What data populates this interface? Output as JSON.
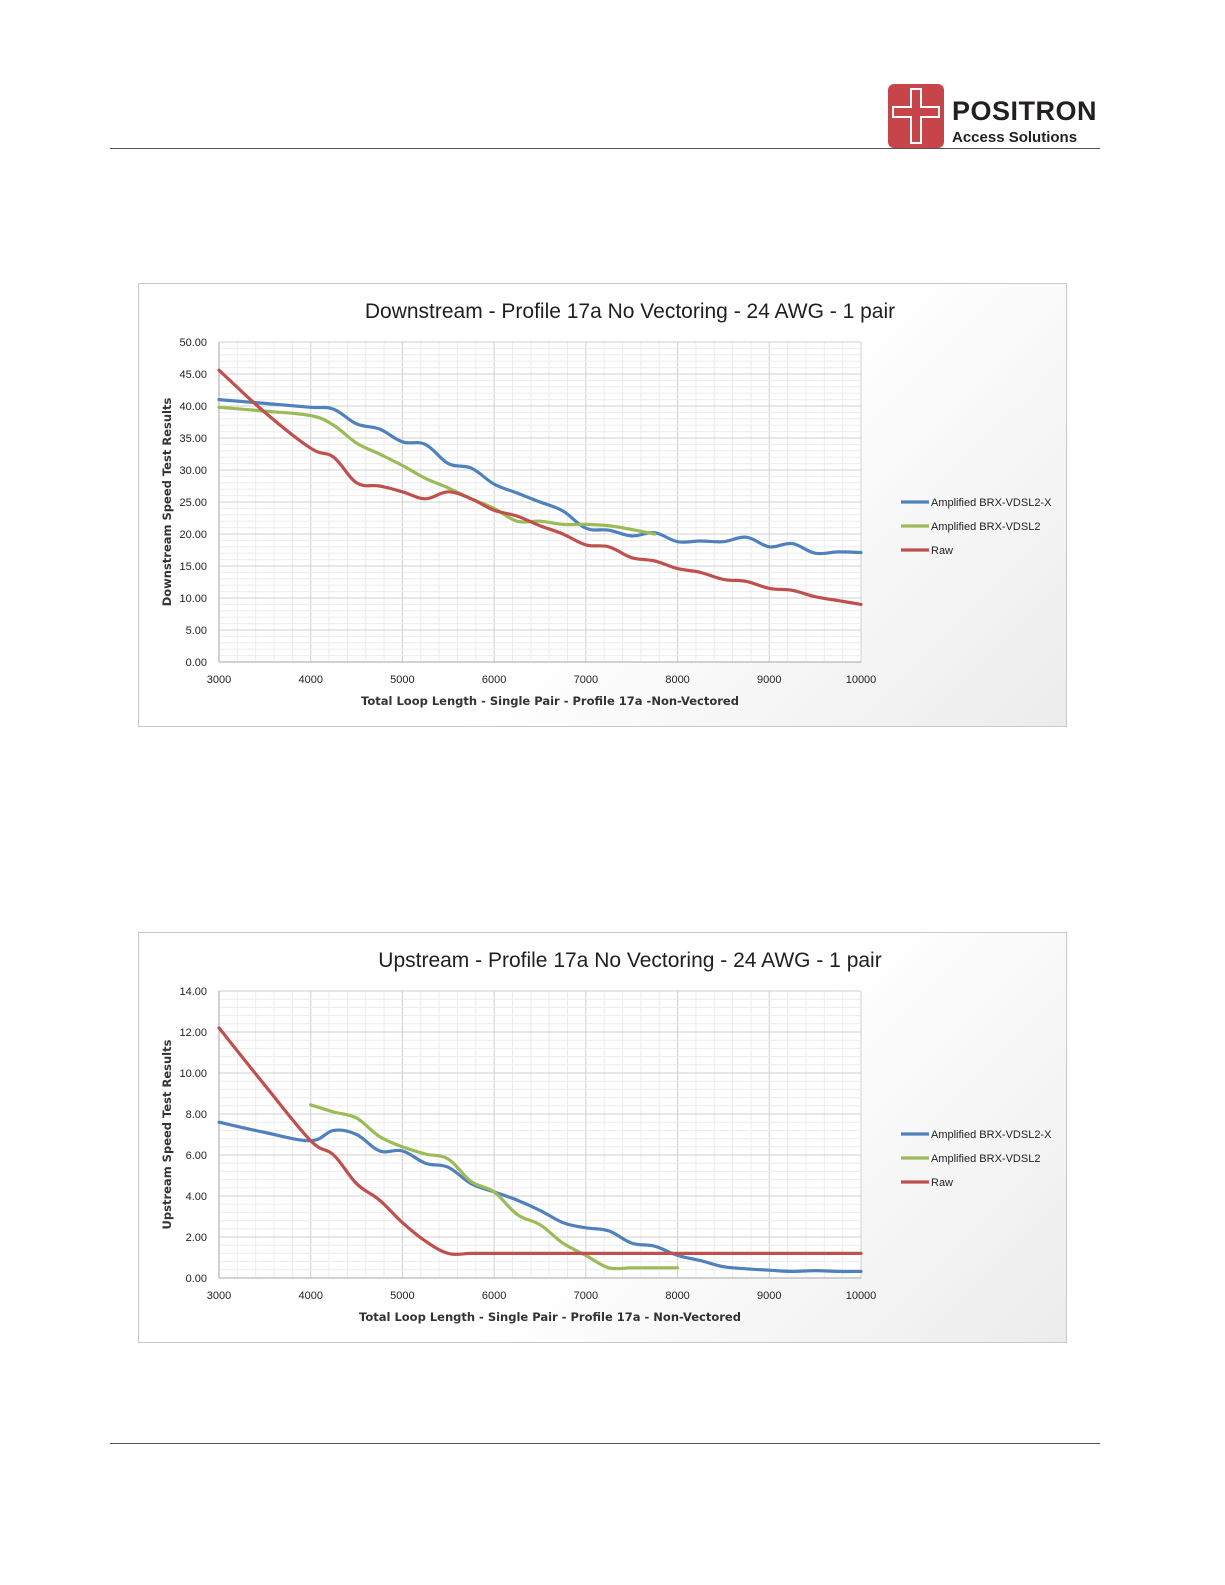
{
  "header": {
    "logo_name": "POSITRON",
    "logo_sub": "Access Solutions",
    "brand_color": "#c8444b"
  },
  "chart_data": [
    {
      "type": "line",
      "title": "Downstream - Profile 17a No Vectoring - 24 AWG - 1 pair",
      "xlabel": "Total Loop Length - Single Pair - Profile 17a -Non-Vectored",
      "ylabel": "Downstream Speed Test Results",
      "xlim": [
        3000,
        10000
      ],
      "ylim": [
        0,
        50
      ],
      "xticks": [
        "3000",
        "4000",
        "5000",
        "6000",
        "7000",
        "8000",
        "9000",
        "10000"
      ],
      "yticks": [
        "0.00",
        "5.00",
        "10.00",
        "15.00",
        "20.00",
        "25.00",
        "30.00",
        "35.00",
        "40.00",
        "45.00",
        "50.00"
      ],
      "grid": true,
      "legend_position": "right",
      "series": [
        {
          "name": "Amplified BRX-VDSL2-X",
          "color": "#4f81bd",
          "x": [
            3000,
            3500,
            4000,
            4250,
            4500,
            4750,
            5000,
            5250,
            5500,
            5750,
            6000,
            6250,
            6500,
            6750,
            7000,
            7250,
            7500,
            7750,
            8000,
            8250,
            8500,
            8750,
            9000,
            9250,
            9500,
            9750,
            10000
          ],
          "y": [
            41.0,
            40.4,
            39.8,
            39.5,
            37.2,
            36.4,
            34.4,
            34.0,
            31.0,
            30.3,
            27.8,
            26.4,
            25.0,
            23.6,
            20.9,
            20.6,
            19.7,
            20.2,
            18.8,
            18.9,
            18.8,
            19.5,
            18.0,
            18.5,
            17.0,
            17.2,
            17.1
          ]
        },
        {
          "name": "Amplified BRX-VDSL2",
          "color": "#9bbb59",
          "x": [
            3000,
            3500,
            4000,
            4250,
            4500,
            4750,
            5000,
            5250,
            5500,
            5750,
            6000,
            6250,
            6500,
            6750,
            7000,
            7250,
            7500,
            7750
          ],
          "y": [
            39.8,
            39.2,
            38.5,
            37.0,
            34.2,
            32.5,
            30.7,
            28.7,
            27.2,
            25.5,
            24.0,
            22.0,
            22.0,
            21.5,
            21.5,
            21.3,
            20.7,
            20.0
          ]
        },
        {
          "name": "Raw",
          "color": "#c0504d",
          "x": [
            3000,
            3500,
            4000,
            4250,
            4500,
            4750,
            5000,
            5250,
            5500,
            5750,
            6000,
            6250,
            6500,
            6750,
            7000,
            7250,
            7500,
            7750,
            8000,
            8250,
            8500,
            8750,
            9000,
            9250,
            9500,
            9750,
            10000
          ],
          "y": [
            45.6,
            39.0,
            33.4,
            32.0,
            28.0,
            27.5,
            26.6,
            25.5,
            26.6,
            25.5,
            23.7,
            22.8,
            21.3,
            20.0,
            18.3,
            18.0,
            16.3,
            15.8,
            14.6,
            14.0,
            12.9,
            12.6,
            11.5,
            11.2,
            10.2,
            9.6,
            9.0
          ]
        }
      ]
    },
    {
      "type": "line",
      "title": "Upstream - Profile 17a No Vectoring - 24 AWG - 1 pair",
      "xlabel": "Total Loop Length - Single Pair - Profile 17a - Non-Vectored",
      "ylabel": "Upstream Speed Test Results",
      "xlim": [
        3000,
        10000
      ],
      "ylim": [
        0,
        14
      ],
      "xticks": [
        "3000",
        "4000",
        "5000",
        "6000",
        "7000",
        "8000",
        "9000",
        "10000"
      ],
      "yticks": [
        "0.00",
        "2.00",
        "4.00",
        "6.00",
        "8.00",
        "10.00",
        "12.00",
        "14.00"
      ],
      "grid": true,
      "legend_position": "right",
      "series": [
        {
          "name": "Amplified BRX-VDSL2-X",
          "color": "#4f81bd",
          "x": [
            3000,
            3500,
            4000,
            4250,
            4500,
            4750,
            5000,
            5250,
            5500,
            5750,
            6000,
            6250,
            6500,
            6750,
            7000,
            7250,
            7500,
            7750,
            8000,
            8250,
            8500,
            8750,
            9000,
            9250,
            9500,
            9750,
            10000
          ],
          "y": [
            7.6,
            7.1,
            6.7,
            7.2,
            7.0,
            6.2,
            6.2,
            5.6,
            5.4,
            4.6,
            4.2,
            3.8,
            3.3,
            2.7,
            2.45,
            2.3,
            1.7,
            1.55,
            1.1,
            0.85,
            0.55,
            0.45,
            0.38,
            0.32,
            0.36,
            0.32,
            0.32
          ]
        },
        {
          "name": "Amplified BRX-VDSL2",
          "color": "#9bbb59",
          "x": [
            4000,
            4250,
            4500,
            4750,
            5000,
            5250,
            5500,
            5750,
            6000,
            6250,
            6500,
            6750,
            7000,
            7250,
            7500,
            7750,
            8000
          ],
          "y": [
            8.45,
            8.1,
            7.8,
            6.9,
            6.4,
            6.05,
            5.8,
            4.7,
            4.2,
            3.1,
            2.6,
            1.7,
            1.1,
            0.5,
            0.5,
            0.5,
            0.5
          ]
        },
        {
          "name": "Raw",
          "color": "#c0504d",
          "x": [
            3000,
            3500,
            4000,
            4250,
            4500,
            4750,
            5000,
            5250,
            5500,
            5750,
            6000,
            6500,
            7000,
            7500,
            8000,
            8500,
            9000,
            9500,
            10000
          ],
          "y": [
            12.2,
            9.4,
            6.7,
            6.0,
            4.6,
            3.8,
            2.7,
            1.8,
            1.2,
            1.2,
            1.2,
            1.2,
            1.2,
            1.2,
            1.2,
            1.2,
            1.2,
            1.2,
            1.2
          ]
        }
      ]
    }
  ]
}
